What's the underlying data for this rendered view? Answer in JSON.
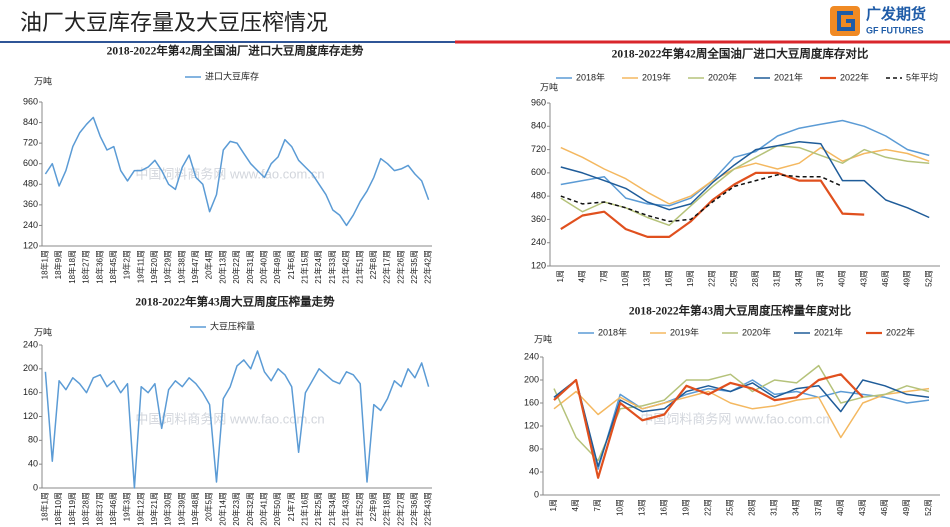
{
  "header": {
    "title": "油厂大豆库存量及大豆压榨情况",
    "logo_cn": "广发期货",
    "logo_en": "GF FUTURES",
    "watermark": "中国饲料商务网 www.fao.com.cn"
  },
  "chart_data": [
    {
      "type": "line",
      "title": "2018-2022年第42周全国油厂进口大豆周度库存走势",
      "y_label": "万吨",
      "categories": [
        "18年1周",
        null,
        "18年9周",
        null,
        "18年18周",
        null,
        "18年27周",
        null,
        "18年36周",
        null,
        "18年45周",
        null,
        "19年2周",
        null,
        "19年11周",
        null,
        "19年20周",
        null,
        "19年29周",
        null,
        "19年38周",
        null,
        "19年47周",
        null,
        "20年4周",
        null,
        "20年13周",
        null,
        "20年22周",
        null,
        "20年31周",
        null,
        "20年40周",
        null,
        "20年49周",
        null,
        "21年6周",
        null,
        "21年15周",
        null,
        "21年24周",
        null,
        "21年33周",
        null,
        "21年42周",
        null,
        "21年51周",
        null,
        "22年8周",
        null,
        "22年17周",
        null,
        "22年26周",
        null,
        "22年35周",
        null,
        "22年42周"
      ],
      "series": [
        {
          "name": "进口大豆库存",
          "color": "#5b9bd5",
          "values": [
            540,
            600,
            470,
            560,
            700,
            780,
            830,
            870,
            760,
            680,
            700,
            560,
            500,
            560,
            560,
            580,
            620,
            560,
            480,
            450,
            580,
            650,
            520,
            480,
            320,
            420,
            680,
            730,
            720,
            660,
            600,
            560,
            520,
            600,
            640,
            740,
            700,
            620,
            580,
            540,
            480,
            420,
            330,
            300,
            240,
            300,
            380,
            440,
            520,
            630,
            600,
            560,
            570,
            590,
            540,
            500,
            390
          ]
        }
      ],
      "ylim": [
        120,
        960
      ],
      "yticks": [
        120,
        240,
        360,
        480,
        600,
        720,
        840,
        960
      ],
      "grid": false
    },
    {
      "type": "line",
      "title": "2018-2022年第42周全国油厂进口大豆周度库存对比",
      "y_label": "万吨",
      "categories": [
        "1周",
        "4周",
        "7周",
        "10周",
        "13周",
        "16周",
        "19周",
        "22周",
        "25周",
        "28周",
        "31周",
        "34周",
        "37周",
        "40周",
        "43周",
        "46周",
        "49周",
        "52周"
      ],
      "series": [
        {
          "name": "2018年",
          "color": "#5b9bd5",
          "values": [
            540,
            560,
            580,
            470,
            440,
            430,
            470,
            560,
            680,
            710,
            790,
            830,
            850,
            870,
            840,
            790,
            720,
            690
          ]
        },
        {
          "name": "2019年",
          "color": "#f4b860",
          "values": [
            730,
            680,
            620,
            570,
            500,
            440,
            480,
            560,
            620,
            650,
            620,
            650,
            730,
            660,
            700,
            720,
            700,
            660
          ]
        },
        {
          "name": "2020年",
          "color": "#b5c27a",
          "values": [
            470,
            400,
            450,
            420,
            370,
            330,
            430,
            530,
            620,
            680,
            740,
            730,
            690,
            650,
            720,
            680,
            660,
            650
          ]
        },
        {
          "name": "2021年",
          "color": "#1f5c99",
          "values": [
            630,
            600,
            560,
            520,
            450,
            410,
            440,
            550,
            640,
            720,
            740,
            760,
            750,
            560,
            560,
            460,
            420,
            370
          ]
        },
        {
          "name": "2022年",
          "color": "#e0501e",
          "width": 2.2,
          "values": [
            310,
            380,
            400,
            310,
            270,
            270,
            350,
            460,
            540,
            600,
            600,
            560,
            560,
            390,
            385,
            null,
            null,
            null
          ]
        },
        {
          "name": "5年平均",
          "color": "#111111",
          "dash": true,
          "values": [
            480,
            440,
            450,
            420,
            380,
            350,
            360,
            450,
            530,
            560,
            590,
            580,
            580,
            530,
            null,
            null,
            null,
            null
          ]
        }
      ],
      "ylim": [
        120,
        960
      ],
      "yticks": [
        120,
        240,
        360,
        480,
        600,
        720,
        840,
        960
      ],
      "grid": false
    },
    {
      "type": "line",
      "title": "2018-2022年第43周大豆周度压榨量走势",
      "y_label": "万吨",
      "categories": [
        "18年1周",
        null,
        "18年10周",
        null,
        "18年19周",
        null,
        "18年28周",
        null,
        "18年37周",
        null,
        "18年46周",
        null,
        "19年3周",
        null,
        "19年12周",
        null,
        "19年21周",
        null,
        "19年30周",
        null,
        "19年39周",
        null,
        "19年48周",
        null,
        "20年5周",
        null,
        "20年14周",
        null,
        "20年23周",
        null,
        "20年32周",
        null,
        "20年41周",
        null,
        "20年50周",
        null,
        "21年7周",
        null,
        "21年16周",
        null,
        "21年25周",
        null,
        "21年34周",
        null,
        "21年43周",
        null,
        "21年52周",
        null,
        "22年9周",
        null,
        "22年18周",
        null,
        "22年27周",
        null,
        "22年36周",
        null,
        "22年43周"
      ],
      "series": [
        {
          "name": "大豆压榨量",
          "color": "#5b9bd5",
          "values": [
            195,
            45,
            180,
            165,
            185,
            175,
            160,
            185,
            190,
            170,
            180,
            160,
            175,
            0,
            170,
            160,
            175,
            100,
            165,
            180,
            170,
            185,
            175,
            160,
            140,
            10,
            150,
            170,
            205,
            215,
            200,
            230,
            195,
            180,
            200,
            190,
            170,
            60,
            160,
            180,
            200,
            190,
            180,
            175,
            195,
            190,
            175,
            10,
            140,
            130,
            150,
            180,
            170,
            200,
            185,
            210,
            170
          ]
        }
      ],
      "ylim": [
        0,
        240
      ],
      "yticks": [
        0,
        40,
        80,
        120,
        160,
        200,
        240
      ],
      "grid": false
    },
    {
      "type": "line",
      "title": "2018-2022年第43周大豆周度压榨量年度对比",
      "y_label": "万吨",
      "categories": [
        "1周",
        "4周",
        "7周",
        "10周",
        "13周",
        "16周",
        "19周",
        "22周",
        "25周",
        "28周",
        "31周",
        "34周",
        "37周",
        "40周",
        "43周",
        "46周",
        "49周",
        "52周"
      ],
      "series": [
        {
          "name": "2018年",
          "color": "#5b9bd5",
          "values": [
            170,
            200,
            45,
            175,
            150,
            160,
            175,
            185,
            180,
            200,
            175,
            180,
            170,
            180,
            175,
            170,
            160,
            165
          ]
        },
        {
          "name": "2019年",
          "color": "#f4b860",
          "values": [
            150,
            180,
            140,
            170,
            150,
            160,
            170,
            180,
            160,
            150,
            155,
            165,
            170,
            100,
            160,
            175,
            180,
            185
          ]
        },
        {
          "name": "2020年",
          "color": "#b5c27a",
          "values": [
            185,
            100,
            60,
            150,
            155,
            165,
            200,
            200,
            210,
            180,
            200,
            195,
            225,
            160,
            170,
            175,
            190,
            180
          ]
        },
        {
          "name": "2021年",
          "color": "#1f5c99",
          "values": [
            170,
            200,
            50,
            165,
            145,
            150,
            180,
            190,
            180,
            195,
            170,
            185,
            190,
            145,
            200,
            190,
            175,
            170
          ]
        },
        {
          "name": "2022年",
          "color": "#e0501e",
          "width": 2.2,
          "values": [
            165,
            200,
            30,
            160,
            130,
            140,
            190,
            175,
            195,
            185,
            165,
            170,
            200,
            210,
            170,
            null,
            null,
            null
          ]
        }
      ],
      "ylim": [
        0,
        240
      ],
      "yticks": [
        0,
        40,
        80,
        120,
        160,
        200,
        240
      ],
      "grid": false
    }
  ]
}
